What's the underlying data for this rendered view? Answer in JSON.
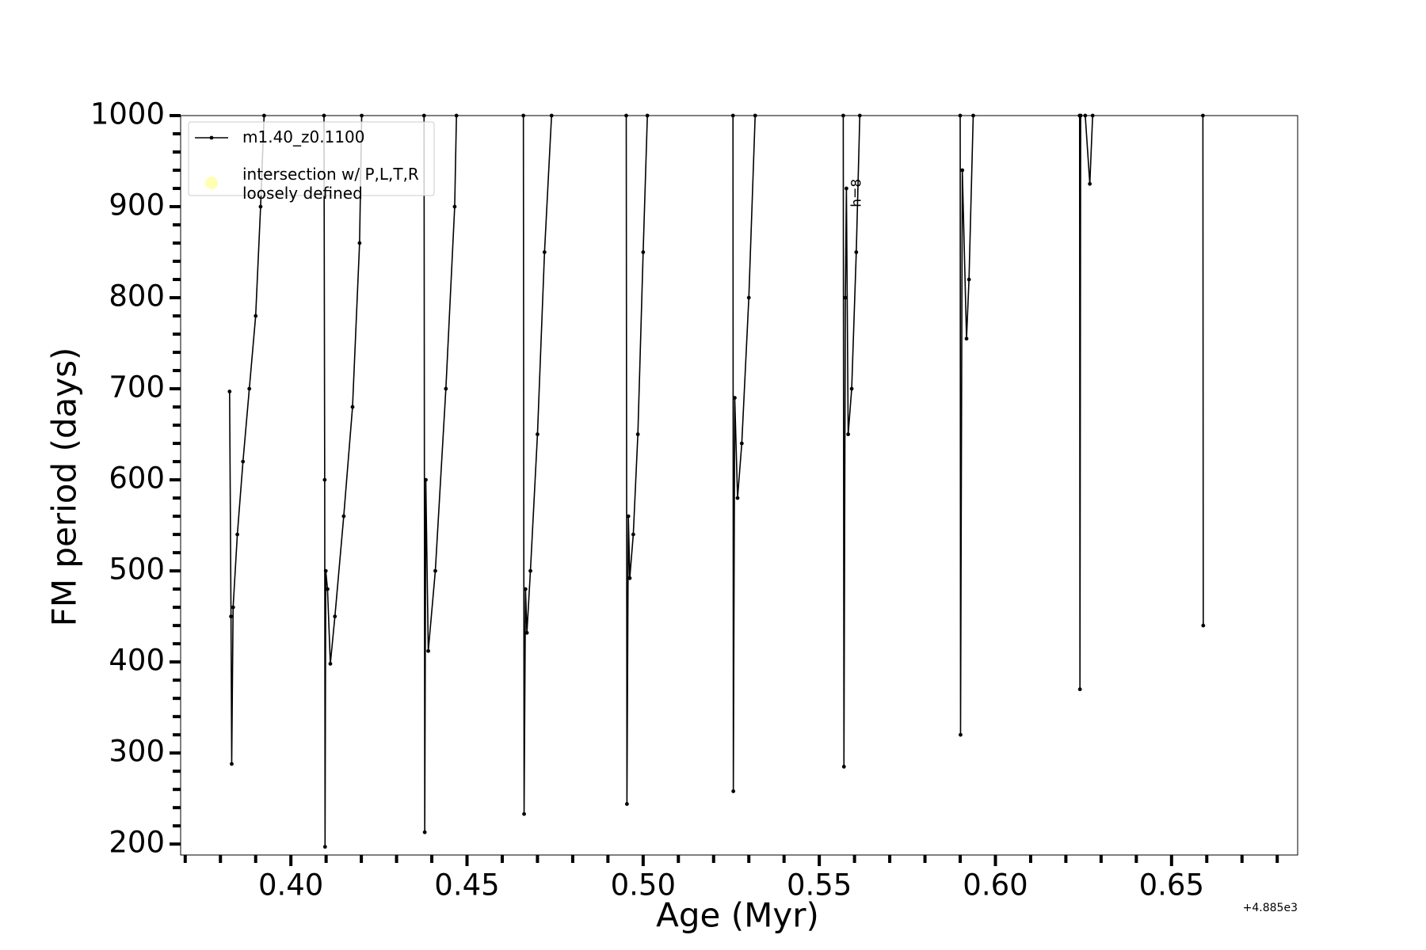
{
  "chart_data": {
    "type": "line",
    "xlabel": "Age (Myr)",
    "ylabel": "FM period (days)",
    "x_offset_label": "+4.885e3",
    "annotation": "h=8",
    "xlim": [
      0.3687,
      0.6858
    ],
    "ylim": [
      188,
      1000
    ],
    "xticks": [
      {
        "value": 0.4,
        "label": "0.40"
      },
      {
        "value": 0.45,
        "label": "0.45"
      },
      {
        "value": 0.5,
        "label": "0.50"
      },
      {
        "value": 0.55,
        "label": "0.55"
      },
      {
        "value": 0.6,
        "label": "0.60"
      },
      {
        "value": 0.65,
        "label": "0.65"
      }
    ],
    "xminorticks": [
      0.37,
      0.38,
      0.39,
      0.41,
      0.42,
      0.43,
      0.44,
      0.46,
      0.47,
      0.48,
      0.49,
      0.51,
      0.52,
      0.53,
      0.54,
      0.56,
      0.57,
      0.58,
      0.59,
      0.61,
      0.62,
      0.63,
      0.64,
      0.66,
      0.67,
      0.68
    ],
    "yticks": [
      200,
      300,
      400,
      500,
      600,
      700,
      800,
      900,
      1000
    ],
    "yminorticks": [
      220,
      240,
      260,
      280,
      320,
      340,
      360,
      380,
      420,
      440,
      460,
      480,
      520,
      540,
      560,
      580,
      620,
      640,
      660,
      680,
      720,
      740,
      760,
      780,
      820,
      840,
      860,
      880,
      920,
      940,
      960,
      980
    ],
    "legend": "upper left",
    "series": [
      {
        "name": "m1.40_z0.1100",
        "color": "#000000",
        "x": [
          0.3826,
          0.383,
          0.3832,
          0.3836,
          0.3848,
          0.3864,
          0.3882,
          0.39,
          0.3914,
          0.3924,
          null,
          0.4094,
          0.4096,
          0.4097,
          0.4099,
          0.4104,
          0.4112,
          0.4125,
          0.415,
          0.4175,
          0.4195,
          0.4201,
          null,
          0.4378,
          0.438,
          0.4383,
          0.439,
          0.441,
          0.444,
          0.4465,
          0.447,
          null,
          0.466,
          0.4662,
          0.4666,
          0.467,
          0.468,
          0.47,
          0.472,
          0.474,
          null,
          0.4952,
          0.4954,
          0.4958,
          0.4962,
          0.4972,
          0.4985,
          0.5,
          0.5012,
          null,
          0.5255,
          0.5256,
          0.526,
          0.5268,
          0.528,
          0.53,
          0.5318,
          null,
          0.5568,
          0.557,
          0.5574,
          0.5577,
          0.5582,
          0.5592,
          0.5605,
          0.5615,
          null,
          0.59,
          0.5901,
          0.5906,
          0.5918,
          0.5925,
          0.5937,
          null,
          0.6239,
          0.624,
          0.6242,
          null,
          0.6255,
          0.6268,
          0.6276,
          null,
          0.6589,
          0.659
        ],
        "values": [
          697,
          450,
          288,
          460,
          540,
          620,
          700,
          780,
          900,
          1000,
          null,
          1000,
          600,
          197,
          500,
          480,
          398,
          450,
          560,
          680,
          860,
          1000,
          null,
          1000,
          213,
          600,
          412,
          500,
          700,
          900,
          1000,
          null,
          1000,
          233,
          480,
          432,
          500,
          650,
          850,
          1000,
          null,
          1000,
          244,
          560,
          492,
          540,
          650,
          850,
          1000,
          null,
          1000,
          258,
          690,
          580,
          640,
          800,
          1000,
          null,
          1000,
          285,
          800,
          920,
          650,
          700,
          850,
          1000,
          null,
          1000,
          320,
          940,
          755,
          820,
          1000,
          null,
          1000,
          370,
          1000,
          null,
          1000,
          925,
          1000,
          null,
          1000,
          440
        ]
      },
      {
        "name": "intersection w/ P,L,T,R\nloosely defined",
        "color": "#ffffb3",
        "x": [],
        "values": []
      }
    ]
  }
}
